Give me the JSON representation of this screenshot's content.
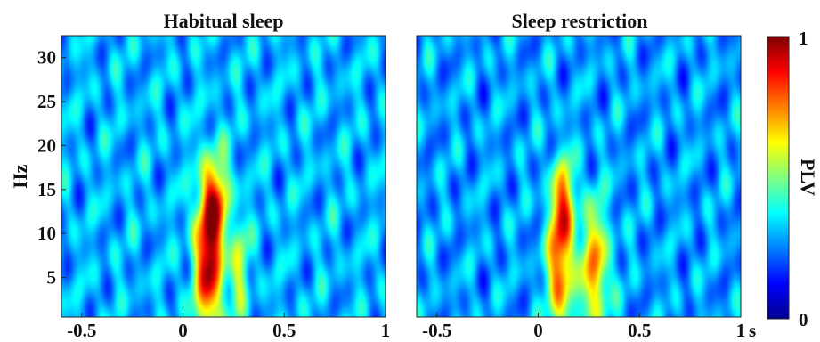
{
  "chart_data": [
    {
      "type": "heatmap",
      "title": "Habitual sleep",
      "xlabel": "",
      "ylabel": "Hz",
      "xlim": [
        -0.6,
        1.0
      ],
      "ylim": [
        0.5,
        32.5
      ],
      "x_ticks": [
        "-0.5",
        "0",
        "0.5",
        "1"
      ],
      "x_tick_values": [
        -0.5,
        0,
        0.5,
        1
      ],
      "y_ticks": [
        "5",
        "10",
        "15",
        "20",
        "25",
        "30"
      ],
      "y_tick_values": [
        5,
        10,
        15,
        20,
        25,
        30
      ],
      "colormap": "jet",
      "background_plv": 0.3,
      "peaks": [
        {
          "time": 0.13,
          "freq": 7,
          "plv": 0.95,
          "time_spread": 0.05,
          "freq_spread": 6
        },
        {
          "time": 0.16,
          "freq": 14,
          "plv": 0.62,
          "time_spread": 0.05,
          "freq_spread": 3.5
        },
        {
          "time": 0.28,
          "freq": 6,
          "plv": 0.55,
          "time_spread": 0.03,
          "freq_spread": 4
        }
      ]
    },
    {
      "type": "heatmap",
      "title": "Sleep restriction",
      "xlabel": "s",
      "ylabel": "",
      "xlim": [
        -0.6,
        1.0
      ],
      "ylim": [
        0.5,
        32.5
      ],
      "x_ticks": [
        "-0.5",
        "0",
        "0.5",
        "1"
      ],
      "x_tick_values": [
        -0.5,
        0,
        0.5,
        1
      ],
      "colormap": "jet",
      "background_plv": 0.28,
      "peaks": [
        {
          "time": 0.11,
          "freq": 7,
          "plv": 0.82,
          "time_spread": 0.045,
          "freq_spread": 6
        },
        {
          "time": 0.13,
          "freq": 14,
          "plv": 0.55,
          "time_spread": 0.04,
          "freq_spread": 3
        },
        {
          "time": 0.28,
          "freq": 6,
          "plv": 0.72,
          "time_spread": 0.05,
          "freq_spread": 5
        }
      ]
    }
  ],
  "colorbar": {
    "label": "PLV",
    "min_label": "0",
    "max_label": "1",
    "range": [
      0,
      1
    ]
  }
}
